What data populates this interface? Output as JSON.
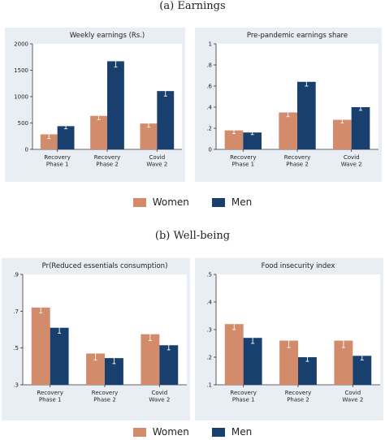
{
  "sections": [
    {
      "title": "(a) Earnings"
    },
    {
      "title": "(b) Well-being"
    }
  ],
  "legend": {
    "women": "Women",
    "men": "Men"
  },
  "colors": {
    "women": "#d28b6b",
    "men": "#183f6e",
    "panel_bg": "#e9eef5",
    "grid": "#ffffff"
  },
  "chart_data": [
    {
      "type": "bar",
      "title": "Weekly earnings (Rs.)",
      "categories": [
        [
          "Recovery",
          "Phase 1"
        ],
        [
          "Recovery",
          "Phase 2"
        ],
        [
          "Covid",
          "Wave 2"
        ]
      ],
      "series": [
        {
          "name": "Women",
          "values": [
            285,
            635,
            490
          ],
          "ci": [
            [
              205,
              365
            ],
            [
              565,
              705
            ],
            [
              420,
              560
            ]
          ]
        },
        {
          "name": "Men",
          "values": [
            440,
            1670,
            1105
          ],
          "ci": [
            [
              390,
              490
            ],
            [
              1560,
              1780
            ],
            [
              1010,
              1200
            ]
          ]
        }
      ],
      "ylim": [
        0,
        2000
      ],
      "yticks": [
        0,
        500,
        1000,
        1500,
        2000
      ],
      "ytick_labels": [
        "0",
        "500",
        "1000",
        "1500",
        "2000"
      ],
      "grid": false,
      "legend": "bottom"
    },
    {
      "type": "bar",
      "title": "Pre-pandemic earnings share",
      "categories": [
        [
          "Recovery",
          "Phase 1"
        ],
        [
          "Recovery",
          "Phase 2"
        ],
        [
          "Covid",
          "Wave 2"
        ]
      ],
      "series": [
        {
          "name": "Women",
          "values": [
            0.18,
            0.35,
            0.28
          ],
          "ci": [
            [
              0.15,
              0.21
            ],
            [
              0.31,
              0.39
            ],
            [
              0.25,
              0.31
            ]
          ]
        },
        {
          "name": "Men",
          "values": [
            0.16,
            0.64,
            0.4
          ],
          "ci": [
            [
              0.14,
              0.18
            ],
            [
              0.6,
              0.68
            ],
            [
              0.37,
              0.43
            ]
          ]
        }
      ],
      "ylim": [
        0,
        1
      ],
      "yticks": [
        0,
        0.2,
        0.4,
        0.6,
        0.8,
        1
      ],
      "ytick_labels": [
        "0",
        ".2",
        ".4",
        ".6",
        ".8",
        "1"
      ],
      "grid": false,
      "legend": "bottom"
    },
    {
      "type": "bar",
      "title": "Pr(Reduced essentials consumption)",
      "categories": [
        [
          "Recovery",
          "Phase 1"
        ],
        [
          "Recovery",
          "Phase 2"
        ],
        [
          "Covid",
          "Wave 2"
        ]
      ],
      "series": [
        {
          "name": "Women",
          "values": [
            0.72,
            0.47,
            0.575
          ],
          "ci": [
            [
              0.69,
              0.755
            ],
            [
              0.435,
              0.51
            ],
            [
              0.54,
              0.615
            ]
          ]
        },
        {
          "name": "Men",
          "values": [
            0.61,
            0.445,
            0.515
          ],
          "ci": [
            [
              0.58,
              0.64
            ],
            [
              0.415,
              0.475
            ],
            [
              0.49,
              0.545
            ]
          ]
        }
      ],
      "ylim": [
        0.3,
        0.9
      ],
      "yticks": [
        0.3,
        0.5,
        0.7,
        0.9
      ],
      "ytick_labels": [
        ".3",
        ".5",
        ".7",
        ".9"
      ],
      "grid": false,
      "legend": "bottom"
    },
    {
      "type": "bar",
      "title": "Food insecurity index",
      "categories": [
        [
          "Recovery",
          "Phase 1"
        ],
        [
          "Recovery",
          "Phase 2"
        ],
        [
          "Covid",
          "Wave 2"
        ]
      ],
      "series": [
        {
          "name": "Women",
          "values": [
            0.32,
            0.26,
            0.26
          ],
          "ci": [
            [
              0.3,
              0.345
            ],
            [
              0.235,
              0.285
            ],
            [
              0.235,
              0.285
            ]
          ]
        },
        {
          "name": "Men",
          "values": [
            0.27,
            0.2,
            0.205
          ],
          "ci": [
            [
              0.25,
              0.29
            ],
            [
              0.185,
              0.215
            ],
            [
              0.19,
              0.225
            ]
          ]
        }
      ],
      "ylim": [
        0.1,
        0.5
      ],
      "yticks": [
        0.1,
        0.2,
        0.3,
        0.4,
        0.5
      ],
      "ytick_labels": [
        ".1",
        ".2",
        ".3",
        ".4",
        ".5"
      ],
      "grid": false,
      "legend": "bottom"
    }
  ]
}
